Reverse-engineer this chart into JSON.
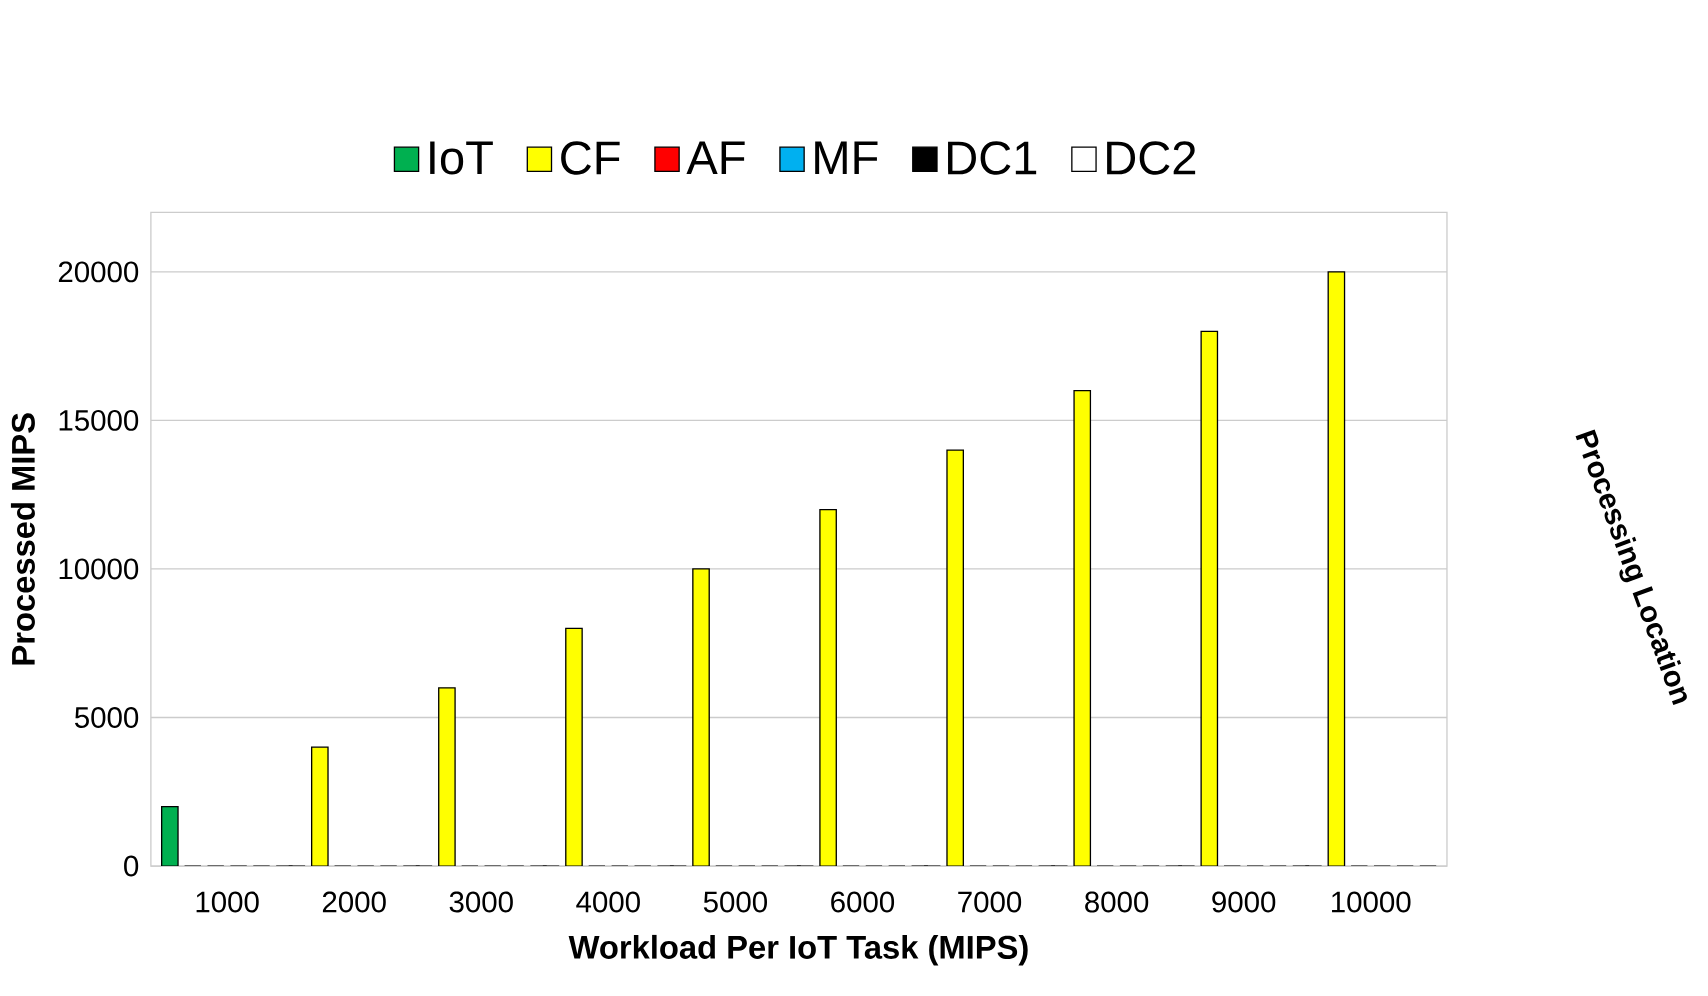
{
  "chart_data": {
    "type": "bar",
    "xlabel": "Workload Per IoT Task (MIPS)",
    "ylabel": "Processed MIPS",
    "annotations": [
      "Processing Location"
    ],
    "categories": [
      "1000",
      "2000",
      "3000",
      "4000",
      "5000",
      "6000",
      "7000",
      "8000",
      "9000",
      "10000"
    ],
    "series": [
      {
        "name": "IoT",
        "color": "#00b050",
        "values": [
          2000,
          0,
          0,
          0,
          0,
          0,
          0,
          0,
          0,
          0
        ]
      },
      {
        "name": "CF",
        "color": "#ffff00",
        "values": [
          0,
          4000,
          6000,
          8000,
          10000,
          12000,
          14000,
          16000,
          18000,
          20000
        ]
      },
      {
        "name": "AF",
        "color": "#ff0000",
        "values": [
          0,
          0,
          0,
          0,
          0,
          0,
          0,
          0,
          0,
          0
        ]
      },
      {
        "name": "MF",
        "color": "#00b0f0",
        "values": [
          0,
          0,
          0,
          0,
          0,
          0,
          0,
          0,
          0,
          0
        ]
      },
      {
        "name": "DC1",
        "color": "#000000",
        "values": [
          0,
          0,
          0,
          0,
          0,
          0,
          0,
          0,
          0,
          0
        ]
      },
      {
        "name": "DC2",
        "color": "#ffffff",
        "values": [
          0,
          0,
          0,
          0,
          0,
          0,
          0,
          0,
          0,
          0
        ]
      }
    ],
    "ylim": [
      0,
      22000
    ],
    "yticks": [
      0,
      5000,
      10000,
      15000,
      20000
    ],
    "grid": "y",
    "legend": "top"
  }
}
